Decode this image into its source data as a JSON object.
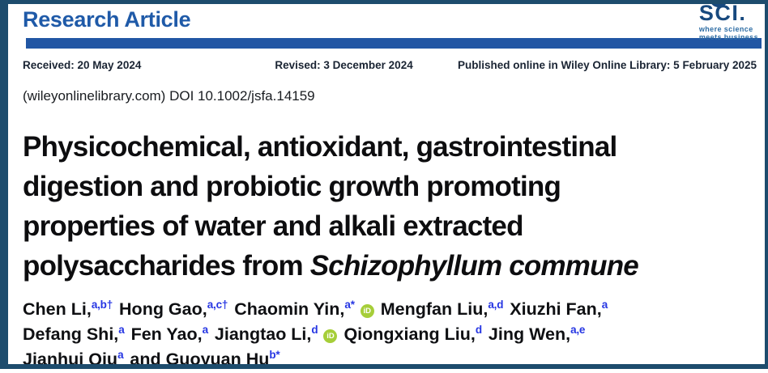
{
  "header": {
    "section_label": "Research Article",
    "logo": {
      "name": "SCI.",
      "tagline1": "where science",
      "tagline2": "meets business"
    }
  },
  "dates": {
    "received": "Received: 20 May 2024",
    "revised": "Revised: 3 December 2024",
    "published": "Published online in Wiley Online Library: 5 February 2025"
  },
  "doi_line": "(wileyonlinelibrary.com) DOI 10.1002/jsfa.14159",
  "title": {
    "line1": "Physicochemical, antioxidant, gastrointestinal",
    "line2": "digestion and probiotic growth promoting",
    "line3": "properties of water and alkali extracted",
    "line4_plain": "polysaccharides from ",
    "line4_italic": "Schizophyllum commune"
  },
  "authors": {
    "orcid_icon_label": "iD",
    "lines": [
      [
        {
          "name": "Chen Li,",
          "sup": "a,b†",
          "orcid": false
        },
        {
          "name": "Hong Gao,",
          "sup": "a,c†",
          "orcid": false
        },
        {
          "name": "Chaomin Yin,",
          "sup": "a*",
          "orcid": true
        },
        {
          "name": "Mengfan Liu,",
          "sup": "a,d",
          "orcid": false
        },
        {
          "name": "Xiuzhi Fan,",
          "sup": "a",
          "orcid": false
        }
      ],
      [
        {
          "name": "Defang Shi,",
          "sup": "a",
          "orcid": false
        },
        {
          "name": "Fen Yao,",
          "sup": "a",
          "orcid": false
        },
        {
          "name": "Jiangtao Li,",
          "sup": "d",
          "orcid": true
        },
        {
          "name": "Qiongxiang Liu,",
          "sup": "d",
          "orcid": false
        },
        {
          "name": "Jing Wen,",
          "sup": "a,e",
          "orcid": false
        }
      ],
      [
        {
          "name": "Jianhui Qiu",
          "sup": "a",
          "orcid": false
        },
        {
          "name": "and Guoyuan Hu",
          "sup": "b*",
          "orcid": false
        }
      ]
    ]
  },
  "colors": {
    "accent_blue": "#2156a4",
    "section_label_blue": "#1f5aa8",
    "frame_teal": "#1d4c6d",
    "superscript_blue": "#2636e3",
    "orcid_green": "#a6ce39",
    "logo_navy": "#17497e"
  }
}
